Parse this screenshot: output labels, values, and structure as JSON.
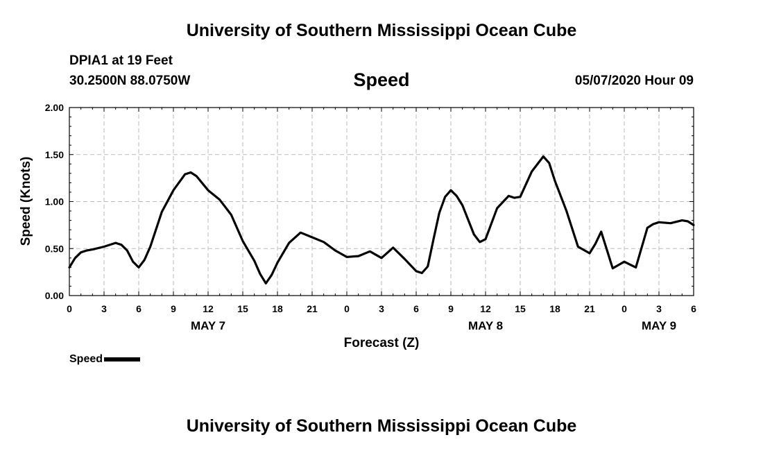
{
  "header": {
    "title": "University of Southern Mississippi Ocean Cube",
    "station_name": "DPIA1 at 19 Feet",
    "station_coords": "30.2500N 88.0750W",
    "run_time": "05/07/2020 Hour 09"
  },
  "footer": {
    "title": "University of Southern Mississippi Ocean Cube"
  },
  "colors": {
    "line": "#000000",
    "grid": "#bbbbbb",
    "background": "#ffffff"
  },
  "chart_data": {
    "type": "line",
    "title": "Speed",
    "xlabel": "Forecast (Z)",
    "ylabel": "Speed (Knots)",
    "xlim": [
      0,
      54
    ],
    "ylim": [
      0,
      2.0
    ],
    "grid": true,
    "legend_position": "bottom-left",
    "x_ticks": [
      {
        "x": 0,
        "label": "0"
      },
      {
        "x": 3,
        "label": "3"
      },
      {
        "x": 6,
        "label": "6"
      },
      {
        "x": 9,
        "label": "9"
      },
      {
        "x": 12,
        "label": "12"
      },
      {
        "x": 15,
        "label": "15"
      },
      {
        "x": 18,
        "label": "18"
      },
      {
        "x": 21,
        "label": "21"
      },
      {
        "x": 24,
        "label": "0"
      },
      {
        "x": 27,
        "label": "3"
      },
      {
        "x": 30,
        "label": "6"
      },
      {
        "x": 33,
        "label": "9"
      },
      {
        "x": 36,
        "label": "12"
      },
      {
        "x": 39,
        "label": "15"
      },
      {
        "x": 42,
        "label": "18"
      },
      {
        "x": 45,
        "label": "21"
      },
      {
        "x": 48,
        "label": "0"
      },
      {
        "x": 51,
        "label": "3"
      },
      {
        "x": 54,
        "label": "6"
      }
    ],
    "y_ticks": [
      {
        "y": 0.0,
        "label": "0.00"
      },
      {
        "y": 0.5,
        "label": "0.50"
      },
      {
        "y": 1.0,
        "label": "1.00"
      },
      {
        "y": 1.5,
        "label": "1.50"
      },
      {
        "y": 2.0,
        "label": "2.00"
      }
    ],
    "date_labels": [
      {
        "x": 12,
        "label": "MAY 7"
      },
      {
        "x": 36,
        "label": "MAY 8"
      },
      {
        "x": 51,
        "label": "MAY 9"
      }
    ],
    "series": [
      {
        "name": "Speed",
        "x": [
          0,
          0.5,
          1,
          1.5,
          2,
          3,
          4,
          4.5,
          5,
          5.5,
          6,
          6.5,
          7,
          8,
          9,
          10,
          10.5,
          11,
          12,
          13,
          14,
          15,
          16,
          16.5,
          17,
          17.5,
          18,
          19,
          20,
          21,
          22,
          23,
          24,
          25,
          26,
          27,
          28,
          29,
          30,
          30.5,
          31,
          31.5,
          32,
          32.5,
          33,
          33.5,
          34,
          35,
          35.5,
          36,
          37,
          38,
          38.5,
          39,
          40,
          41,
          41.5,
          42,
          43,
          44,
          45,
          45.5,
          46,
          47,
          48,
          48.5,
          49,
          50,
          50.5,
          51,
          52,
          53,
          53.5,
          54
        ],
        "values": [
          0.3,
          0.4,
          0.46,
          0.48,
          0.49,
          0.52,
          0.56,
          0.54,
          0.48,
          0.36,
          0.3,
          0.38,
          0.52,
          0.89,
          1.12,
          1.29,
          1.31,
          1.27,
          1.12,
          1.02,
          0.86,
          0.58,
          0.37,
          0.23,
          0.13,
          0.22,
          0.35,
          0.56,
          0.67,
          0.62,
          0.57,
          0.48,
          0.41,
          0.42,
          0.47,
          0.4,
          0.51,
          0.39,
          0.26,
          0.24,
          0.31,
          0.6,
          0.88,
          1.05,
          1.12,
          1.06,
          0.96,
          0.65,
          0.57,
          0.6,
          0.93,
          1.06,
          1.04,
          1.05,
          1.32,
          1.48,
          1.41,
          1.22,
          0.9,
          0.52,
          0.45,
          0.55,
          0.68,
          0.29,
          0.36,
          0.33,
          0.3,
          0.72,
          0.76,
          0.78,
          0.77,
          0.8,
          0.79,
          0.75
        ]
      }
    ]
  }
}
